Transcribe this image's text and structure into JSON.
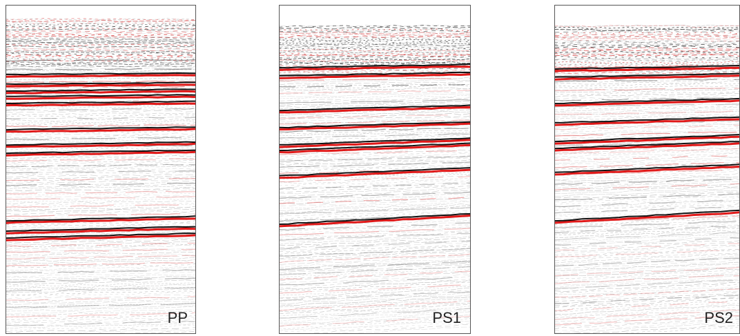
{
  "panels": [
    {
      "label": "PP"
    },
    {
      "label": "PS1"
    },
    {
      "label": "PS2"
    }
  ]
}
